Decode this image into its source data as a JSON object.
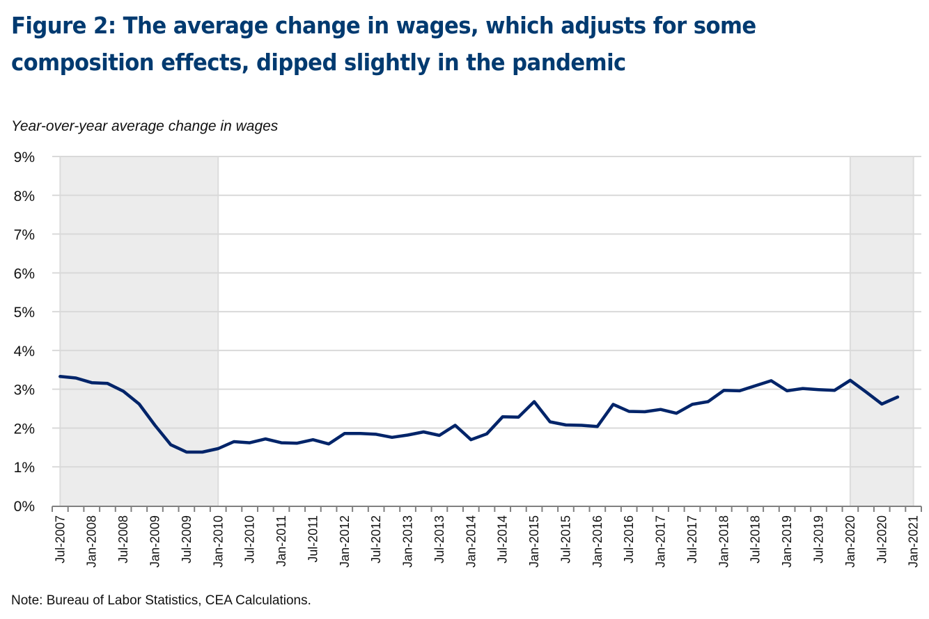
{
  "title": "Figure 2: The average change in wages, which adjusts for some composition effects, dipped slightly in the pandemic",
  "title_lines": [
    "Figure 2: The average change in wages, which adjusts for some",
    "composition effects, dipped slightly in the pandemic"
  ],
  "note": "Note: Bureau of Labor Statistics, CEA Calculations.",
  "colors": {
    "title": "#003A70",
    "line": "#002469",
    "shade": "#ECECEC",
    "grid": "#D9D9D9",
    "axis": "#808080"
  },
  "chart_data": {
    "type": "line",
    "title": "Figure 2: The average change in wages, which adjusts for some composition effects, dipped slightly in the pandemic",
    "ylabel": "Year-over-year average change in wages",
    "xlabel": "",
    "ylim": [
      0,
      9
    ],
    "yticks": [
      "0%",
      "1%",
      "2%",
      "3%",
      "4%",
      "5%",
      "6%",
      "7%",
      "8%",
      "9%"
    ],
    "grid": true,
    "x": [
      "Jul-2007",
      "Oct-2007",
      "Jan-2008",
      "Apr-2008",
      "Jul-2008",
      "Oct-2008",
      "Jan-2009",
      "Apr-2009",
      "Jul-2009",
      "Oct-2009",
      "Jan-2010",
      "Apr-2010",
      "Jul-2010",
      "Oct-2010",
      "Jan-2011",
      "Apr-2011",
      "Jul-2011",
      "Oct-2011",
      "Jan-2012",
      "Apr-2012",
      "Jul-2012",
      "Oct-2012",
      "Jan-2013",
      "Apr-2013",
      "Jul-2013",
      "Oct-2013",
      "Jan-2014",
      "Apr-2014",
      "Jul-2014",
      "Oct-2014",
      "Jan-2015",
      "Apr-2015",
      "Jul-2015",
      "Oct-2015",
      "Jan-2016",
      "Apr-2016",
      "Jul-2016",
      "Oct-2016",
      "Jan-2017",
      "Apr-2017",
      "Jul-2017",
      "Oct-2017",
      "Jan-2018",
      "Apr-2018",
      "Jul-2018",
      "Oct-2018",
      "Jan-2019",
      "Apr-2019",
      "Jul-2019",
      "Oct-2019",
      "Jan-2020",
      "Apr-2020",
      "Jul-2020",
      "Oct-2020",
      "Jan-2021"
    ],
    "xtick_labels": [
      "Jul-2007",
      "Jan-2008",
      "Jul-2008",
      "Jan-2009",
      "Jul-2009",
      "Jan-2010",
      "Jul-2010",
      "Jan-2011",
      "Jul-2011",
      "Jan-2012",
      "Jul-2012",
      "Jan-2013",
      "Jul-2013",
      "Jan-2014",
      "Jul-2014",
      "Jan-2015",
      "Jul-2015",
      "Jan-2016",
      "Jul-2016",
      "Jan-2017",
      "Jul-2017",
      "Jan-2018",
      "Jul-2018",
      "Jan-2019",
      "Jul-2019",
      "Jan-2020",
      "Jul-2020",
      "Jan-2021"
    ],
    "series": [
      {
        "name": "Year-over-year average change in wages (%)",
        "values": [
          3.33,
          3.29,
          3.17,
          3.15,
          2.95,
          2.62,
          2.07,
          1.57,
          1.38,
          1.38,
          1.47,
          1.65,
          1.62,
          1.72,
          1.62,
          1.61,
          1.7,
          1.59,
          1.86,
          1.86,
          1.84,
          1.76,
          1.82,
          1.9,
          1.81,
          2.07,
          1.7,
          1.85,
          2.29,
          2.28,
          2.68,
          2.16,
          2.08,
          2.07,
          2.04,
          2.61,
          2.43,
          2.42,
          2.48,
          2.38,
          2.61,
          2.68,
          2.97,
          2.96,
          3.09,
          3.22,
          2.96,
          3.02,
          2.99,
          2.97,
          3.23,
          2.93,
          2.62,
          2.8,
          null
        ]
      }
    ],
    "shaded_periods": [
      {
        "from": "Jul-2007",
        "to": "Jan-2010"
      },
      {
        "from": "Jan-2020",
        "to": "Jan-2021"
      }
    ]
  }
}
